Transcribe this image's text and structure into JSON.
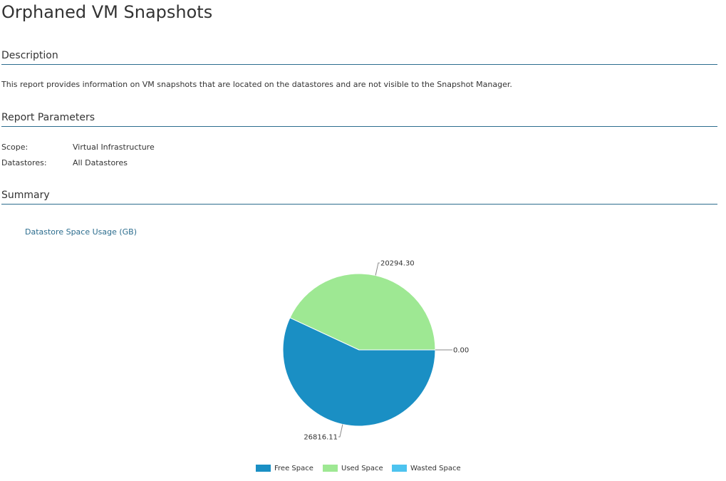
{
  "report": {
    "title": "Orphaned VM Snapshots"
  },
  "description": {
    "heading": "Description",
    "text": "This report provides information on VM snapshots that are located on the datastores and are not visible to the Snapshot Manager."
  },
  "parameters": {
    "heading": "Report Parameters",
    "items": [
      {
        "label": "Scope:",
        "value": "Virtual Infrastructure"
      },
      {
        "label": "Datastores:",
        "value": "All Datastores"
      }
    ]
  },
  "summary": {
    "heading": "Summary",
    "chart_title": "Datastore Space Usage (GB)"
  },
  "colors": {
    "accent": "#2c6d8e",
    "free_space": "#1a8fc4",
    "used_space": "#9ee893",
    "wasted_space": "#4dc3ef"
  },
  "chart_data": {
    "type": "pie",
    "title": "Datastore Space Usage (GB)",
    "legend_position": "bottom",
    "series": [
      {
        "name": "Free Space",
        "value": 26816.11,
        "label": "26816.11",
        "color": "#1a8fc4"
      },
      {
        "name": "Used Space",
        "value": 20294.3,
        "label": "20294.30",
        "color": "#9ee893"
      },
      {
        "name": "Wasted Space",
        "value": 0.0,
        "label": "0.00",
        "color": "#4dc3ef"
      }
    ]
  }
}
